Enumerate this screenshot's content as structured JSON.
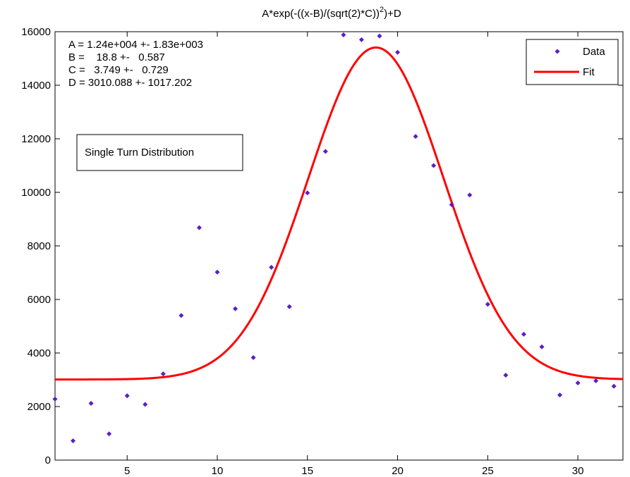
{
  "chart_data": {
    "type": "scatter",
    "title_main": "A*exp(-((x-B)/(sqrt(2)*C))",
    "title_sup": "2",
    "title_tail": ")+D",
    "xlim": [
      1,
      32.5
    ],
    "ylim": [
      0,
      16000
    ],
    "xticks": [
      5,
      10,
      15,
      20,
      25,
      30
    ],
    "yticks": [
      0,
      2000,
      4000,
      6000,
      8000,
      10000,
      12000,
      14000,
      16000
    ],
    "grid": false,
    "legend_position": "top-right",
    "legend": {
      "data_label": "Data",
      "fit_label": "Fit"
    },
    "colors": {
      "data": "#5a1ec8",
      "fit": "#ff0000",
      "axis": "#000000"
    },
    "params_text": [
      "A = 1.24e+004 +- 1.83e+003",
      "B =    18.8 +-   0.587",
      "C =   3.749 +-   0.729",
      "D = 3010.088 +- 1017.202"
    ],
    "annotation_box": "Single Turn Distribution",
    "fit_params": {
      "A": 12400,
      "B": 18.8,
      "C": 3.749,
      "D": 3010.088
    },
    "series": [
      {
        "name": "Data",
        "x": [
          1,
          2,
          3,
          4,
          5,
          6,
          7,
          8,
          9,
          10,
          11,
          12,
          13,
          14,
          15,
          16,
          17,
          18,
          19,
          20,
          21,
          22,
          23,
          24,
          25,
          26,
          27,
          28,
          29,
          30,
          31,
          32
        ],
        "y": [
          2280,
          720,
          2120,
          980,
          2400,
          2080,
          3220,
          5400,
          8680,
          7020,
          5650,
          3830,
          7200,
          5730,
          9980,
          11530,
          15880,
          15700,
          15840,
          15230,
          12090,
          11000,
          9540,
          9900,
          5820,
          3170,
          4700,
          4230,
          2430,
          2880,
          2960,
          2760
        ]
      },
      {
        "name": "Fit",
        "type": "line",
        "function": "A*exp(-((x-B)/(sqrt(2)*C))^2)+D"
      }
    ]
  }
}
